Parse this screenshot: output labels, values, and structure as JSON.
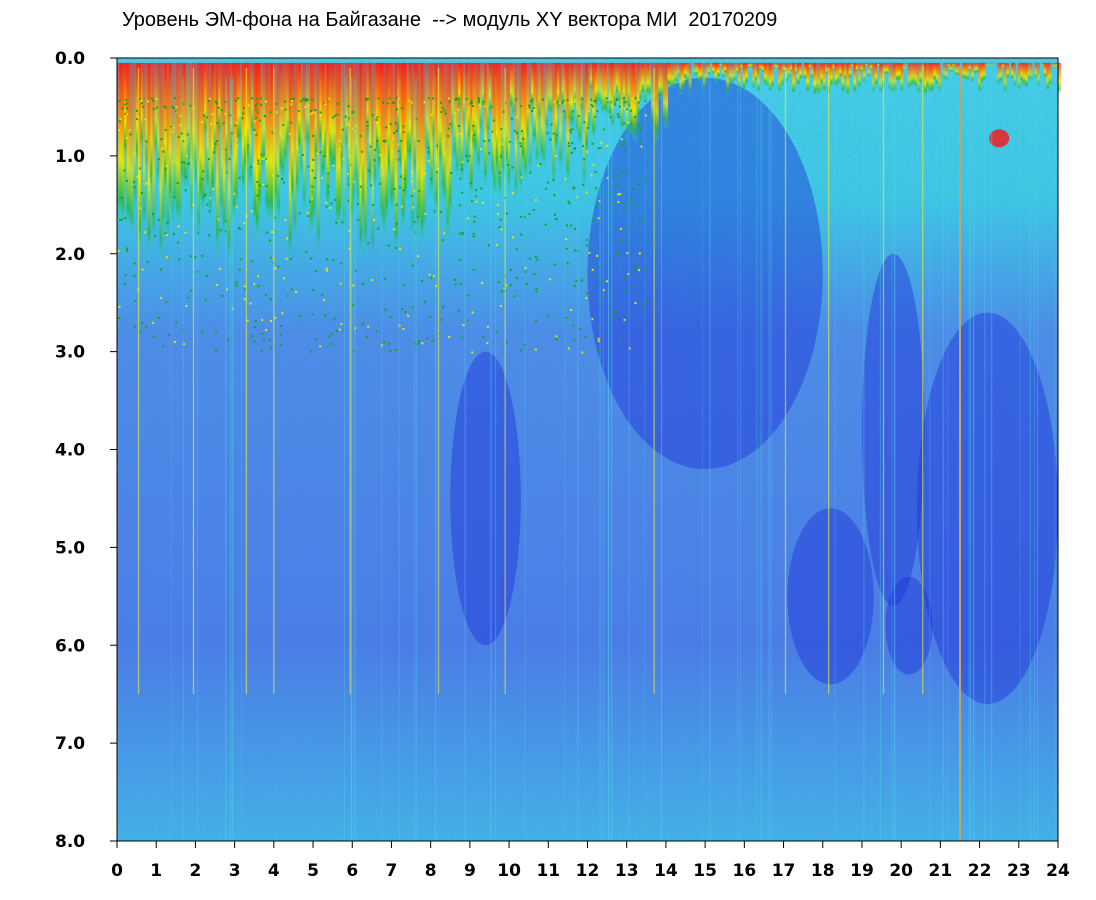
{
  "chart_data": {
    "type": "heatmap",
    "title": "Уровень ЭМ-фона на Байгазане  --> модуль XY вектора МИ  20170209",
    "xlabel": "",
    "ylabel": "",
    "x_ticks": [
      "0",
      "1",
      "2",
      "3",
      "4",
      "5",
      "6",
      "7",
      "8",
      "9",
      "10",
      "11",
      "12",
      "13",
      "14",
      "15",
      "16",
      "17",
      "18",
      "19",
      "20",
      "21",
      "22",
      "23",
      "24"
    ],
    "y_ticks": [
      "0.0",
      "1.0",
      "2.0",
      "3.0",
      "4.0",
      "5.0",
      "6.0",
      "7.0",
      "8.0"
    ],
    "xlim": [
      0,
      24
    ],
    "ylim": [
      0,
      8
    ],
    "y_inverted": true,
    "grid": false,
    "colormap": [
      "#1428d2",
      "#3c64e6",
      "#4ea0ea",
      "#32dce6",
      "#1eb428",
      "#f0f000",
      "#ff8c00",
      "#f01e1e"
    ],
    "features": {
      "vertical_streaks_hours": [
        0.55,
        1.95,
        3.3,
        4.0,
        5.95,
        8.2,
        9.9,
        13.7,
        17.05,
        18.15,
        19.55,
        20.55,
        21.5
      ],
      "notes": "Intense red/yellow band near 0.0–1.0 for hours 0–14; deep-blue regions around 3.5–6.0 between hours 17–24; orange vertical line near hour 21.5"
    }
  }
}
